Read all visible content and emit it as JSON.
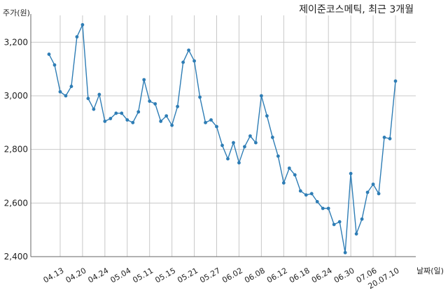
{
  "chart_data": {
    "type": "line",
    "title": "제이준코스메틱, 최근 3개월",
    "ylabel": "주가(원)",
    "xlabel": "날짜(일)",
    "ylim": [
      2400,
      3300
    ],
    "yticks": [
      2400,
      2600,
      2800,
      3000,
      3200
    ],
    "ytick_labels": [
      "2,400",
      "2,600",
      "2,800",
      "3,000",
      "3,200"
    ],
    "grid": true,
    "series_color": "#2e7db5",
    "xtick_labels": [
      "04.13",
      "04.20",
      "04.24",
      "05.04",
      "05.11",
      "05.15",
      "05.21",
      "05.27",
      "06.02",
      "06.08",
      "06.12",
      "06.18",
      "06.24",
      "06.30",
      "07.06",
      "20.07.10"
    ],
    "xtick_index": [
      2,
      6,
      10,
      14,
      18,
      22,
      26,
      30,
      34,
      38,
      42,
      46,
      50,
      54,
      58,
      62
    ],
    "values": [
      3155,
      3115,
      3015,
      3000,
      3035,
      3220,
      3265,
      2990,
      2950,
      3005,
      2905,
      2915,
      2935,
      2935,
      2910,
      2900,
      2940,
      3060,
      2980,
      2970,
      2905,
      2925,
      2890,
      2960,
      3125,
      3170,
      3130,
      2995,
      2900,
      2910,
      2885,
      2815,
      2765,
      2825,
      2750,
      2810,
      2850,
      2825,
      3000,
      2925,
      2845,
      2775,
      2675,
      2730,
      2705,
      2645,
      2630,
      2635,
      2605,
      2580,
      2580,
      2520,
      2530,
      2415,
      2710,
      2485,
      2540,
      2640,
      2670,
      2635,
      2845,
      2840,
      3055
    ]
  }
}
